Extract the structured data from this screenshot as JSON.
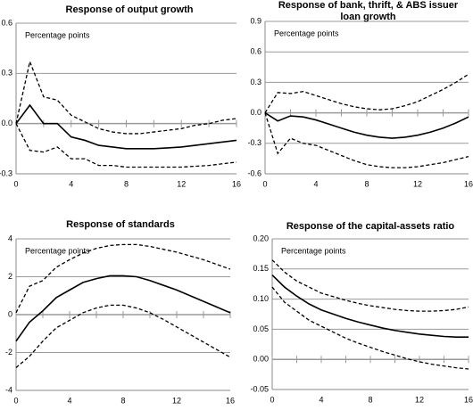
{
  "chart_data": [
    {
      "type": "line",
      "title": "Response of output growth",
      "annotation": "Percentage points",
      "x": [
        0,
        1,
        2,
        3,
        4,
        5,
        6,
        7,
        8,
        9,
        10,
        11,
        12,
        13,
        14,
        15,
        16
      ],
      "xlim": [
        0,
        16
      ],
      "xticks": [
        0,
        4,
        8,
        12,
        16
      ],
      "minor_xticks": [
        0,
        2,
        4,
        6,
        8,
        10,
        12,
        14,
        16
      ],
      "ylim": [
        -0.3,
        0.6
      ],
      "yticks": [
        0.6,
        0.3,
        {
          "value": 0,
          "label": "0.0"
        },
        -0.3
      ],
      "grid": true,
      "series": [
        {
          "color": "#000000",
          "dash": false,
          "values": [
            0,
            0.11,
            0.0,
            0.0,
            -0.08,
            -0.1,
            -0.13,
            -0.14,
            -0.15,
            -0.15,
            -0.15,
            -0.145,
            -0.14,
            -0.13,
            -0.12,
            -0.11,
            -0.1
          ]
        },
        {
          "color": "#000000",
          "dash": true,
          "values": [
            0,
            0.37,
            0.16,
            0.14,
            0.05,
            0.01,
            -0.03,
            -0.05,
            -0.06,
            -0.06,
            -0.05,
            -0.04,
            -0.03,
            -0.01,
            0.0,
            0.02,
            0.03
          ]
        },
        {
          "color": "#000000",
          "dash": true,
          "values": [
            0,
            -0.16,
            -0.17,
            -0.14,
            -0.21,
            -0.21,
            -0.25,
            -0.25,
            -0.26,
            -0.26,
            -0.26,
            -0.26,
            -0.26,
            -0.255,
            -0.25,
            -0.24,
            -0.23
          ]
        }
      ]
    },
    {
      "type": "line",
      "title": "Response of bank, thrift, & ABS issuer loan growth",
      "annotation": "Percentage points",
      "x": [
        0,
        1,
        2,
        3,
        4,
        5,
        6,
        7,
        8,
        9,
        10,
        11,
        12,
        13,
        14,
        15,
        16
      ],
      "xlim": [
        0,
        16
      ],
      "xticks": [
        0,
        4,
        8,
        12,
        16
      ],
      "minor_xticks": [
        0,
        2,
        4,
        6,
        8,
        10,
        12,
        14,
        16
      ],
      "ylim": [
        -0.6,
        0.9
      ],
      "yticks": [
        0.9,
        0.6,
        0.3,
        {
          "value": 0,
          "label": "0.0"
        },
        -0.3,
        -0.6
      ],
      "grid": true,
      "series": [
        {
          "color": "#000000",
          "dash": false,
          "values": [
            0,
            -0.08,
            -0.03,
            -0.04,
            -0.07,
            -0.11,
            -0.15,
            -0.19,
            -0.22,
            -0.24,
            -0.25,
            -0.24,
            -0.22,
            -0.19,
            -0.15,
            -0.1,
            -0.04
          ]
        },
        {
          "color": "#000000",
          "dash": true,
          "values": [
            0,
            0.2,
            0.19,
            0.21,
            0.17,
            0.13,
            0.09,
            0.06,
            0.04,
            0.03,
            0.04,
            0.07,
            0.11,
            0.17,
            0.23,
            0.3,
            0.38
          ]
        },
        {
          "color": "#000000",
          "dash": true,
          "values": [
            0,
            -0.4,
            -0.25,
            -0.3,
            -0.32,
            -0.37,
            -0.42,
            -0.47,
            -0.51,
            -0.53,
            -0.54,
            -0.54,
            -0.53,
            -0.51,
            -0.49,
            -0.46,
            -0.43
          ]
        }
      ]
    },
    {
      "type": "line",
      "title": "Response of standards",
      "annotation": "Percentage points",
      "x": [
        0,
        1,
        2,
        3,
        4,
        5,
        6,
        7,
        8,
        9,
        10,
        11,
        12,
        13,
        14,
        15,
        16
      ],
      "xlim": [
        0,
        16
      ],
      "xticks": [
        0,
        4,
        8,
        12,
        16
      ],
      "minor_xticks": [
        0,
        2,
        4,
        6,
        8,
        10,
        12,
        14,
        16
      ],
      "ylim": [
        -4,
        4
      ],
      "yticks": [
        4,
        2,
        0,
        -2,
        -4
      ],
      "grid": true,
      "series": [
        {
          "color": "#000000",
          "dash": false,
          "values": [
            -1.4,
            -0.4,
            0.2,
            0.9,
            1.3,
            1.7,
            1.9,
            2.05,
            2.05,
            2.0,
            1.8,
            1.55,
            1.3,
            1.0,
            0.7,
            0.4,
            0.1
          ]
        },
        {
          "color": "#000000",
          "dash": true,
          "values": [
            0.1,
            1.5,
            1.8,
            2.5,
            2.9,
            3.25,
            3.5,
            3.65,
            3.7,
            3.7,
            3.6,
            3.45,
            3.3,
            3.1,
            2.9,
            2.65,
            2.4
          ]
        },
        {
          "color": "#000000",
          "dash": true,
          "values": [
            -2.8,
            -2.2,
            -1.4,
            -0.7,
            -0.3,
            0.1,
            0.35,
            0.5,
            0.5,
            0.35,
            0.1,
            -0.25,
            -0.65,
            -1.05,
            -1.45,
            -1.85,
            -2.25
          ]
        }
      ]
    },
    {
      "type": "line",
      "title": "Response of the capital-assets ratio",
      "annotation": "Percentage points",
      "x": [
        0,
        1,
        2,
        3,
        4,
        5,
        6,
        7,
        8,
        9,
        10,
        11,
        12,
        13,
        14,
        15,
        16
      ],
      "xlim": [
        0,
        16
      ],
      "xticks": [
        0,
        4,
        8,
        12,
        16
      ],
      "minor_xticks": [
        0,
        2,
        4,
        6,
        8,
        10,
        12,
        14,
        16
      ],
      "ylim": [
        -0.05,
        0.2
      ],
      "yticks": [
        {
          "value": 0.2,
          "label": "0.20"
        },
        0.15,
        {
          "value": 0.1,
          "label": "0.10"
        },
        0.05,
        {
          "value": 0,
          "label": "0.00"
        },
        -0.05
      ],
      "grid": true,
      "series": [
        {
          "color": "#000000",
          "dash": false,
          "values": [
            0.14,
            0.12,
            0.105,
            0.092,
            0.082,
            0.075,
            0.068,
            0.062,
            0.057,
            0.052,
            0.048,
            0.045,
            0.042,
            0.04,
            0.038,
            0.037,
            0.037
          ]
        },
        {
          "color": "#000000",
          "dash": true,
          "values": [
            0.165,
            0.145,
            0.13,
            0.12,
            0.11,
            0.104,
            0.098,
            0.093,
            0.089,
            0.086,
            0.083,
            0.081,
            0.08,
            0.08,
            0.081,
            0.083,
            0.087
          ]
        },
        {
          "color": "#000000",
          "dash": true,
          "values": [
            0.12,
            0.095,
            0.08,
            0.065,
            0.055,
            0.045,
            0.035,
            0.027,
            0.02,
            0.013,
            0.007,
            0.001,
            -0.004,
            -0.008,
            -0.011,
            -0.014,
            -0.016
          ]
        }
      ]
    }
  ]
}
